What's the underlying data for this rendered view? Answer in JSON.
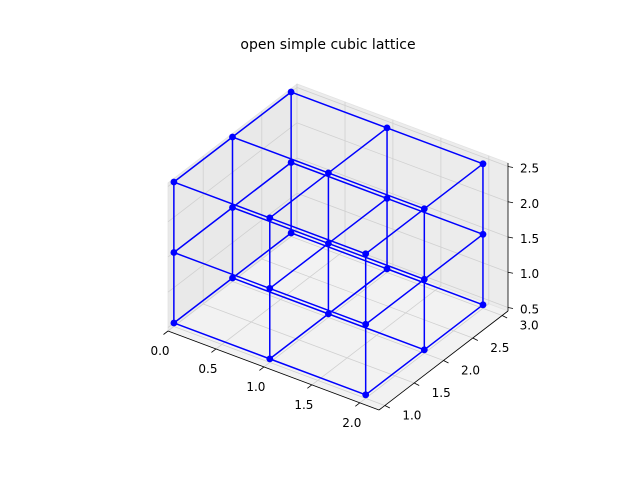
{
  "chart_data": {
    "type": "scatter",
    "title": "open simple cubic lattice",
    "xlabel": "",
    "ylabel": "",
    "zlabel": "",
    "xlim": [
      0,
      2.2
    ],
    "ylim": [
      0.9,
      3.1
    ],
    "zlim": [
      0.45,
      2.55
    ],
    "x_ticks": [
      "0.0",
      "0.5",
      "1.0",
      "1.5",
      "2.0"
    ],
    "y_ticks": [
      "1.0",
      "1.5",
      "2.0",
      "2.5",
      "3.0"
    ],
    "z_ticks": [
      "0.5",
      "1.0",
      "1.5",
      "2.0",
      "2.5"
    ],
    "grid": true,
    "series": [
      {
        "color": "#0000ff",
        "marker": "circle",
        "lattice": {
          "x": [
            0,
            1,
            2
          ],
          "y": [
            1,
            2,
            3
          ],
          "z": [
            0.5,
            1.5,
            2.5
          ]
        },
        "points": [
          [
            0,
            1,
            0.5
          ],
          [
            0,
            1,
            1.5
          ],
          [
            0,
            1,
            2.5
          ],
          [
            0,
            2,
            0.5
          ],
          [
            0,
            2,
            1.5
          ],
          [
            0,
            2,
            2.5
          ],
          [
            0,
            3,
            0.5
          ],
          [
            0,
            3,
            1.5
          ],
          [
            0,
            3,
            2.5
          ],
          [
            1,
            1,
            0.5
          ],
          [
            1,
            1,
            1.5
          ],
          [
            1,
            1,
            2.5
          ],
          [
            1,
            2,
            0.5
          ],
          [
            1,
            2,
            1.5
          ],
          [
            1,
            2,
            2.5
          ],
          [
            1,
            3,
            0.5
          ],
          [
            1,
            3,
            1.5
          ],
          [
            1,
            3,
            2.5
          ],
          [
            2,
            1,
            0.5
          ],
          [
            2,
            1,
            1.5
          ],
          [
            2,
            1,
            2.5
          ],
          [
            2,
            2,
            0.5
          ],
          [
            2,
            2,
            1.5
          ],
          [
            2,
            2,
            2.5
          ],
          [
            2,
            3,
            0.5
          ],
          [
            2,
            3,
            1.5
          ],
          [
            2,
            3,
            2.5
          ]
        ]
      }
    ]
  }
}
